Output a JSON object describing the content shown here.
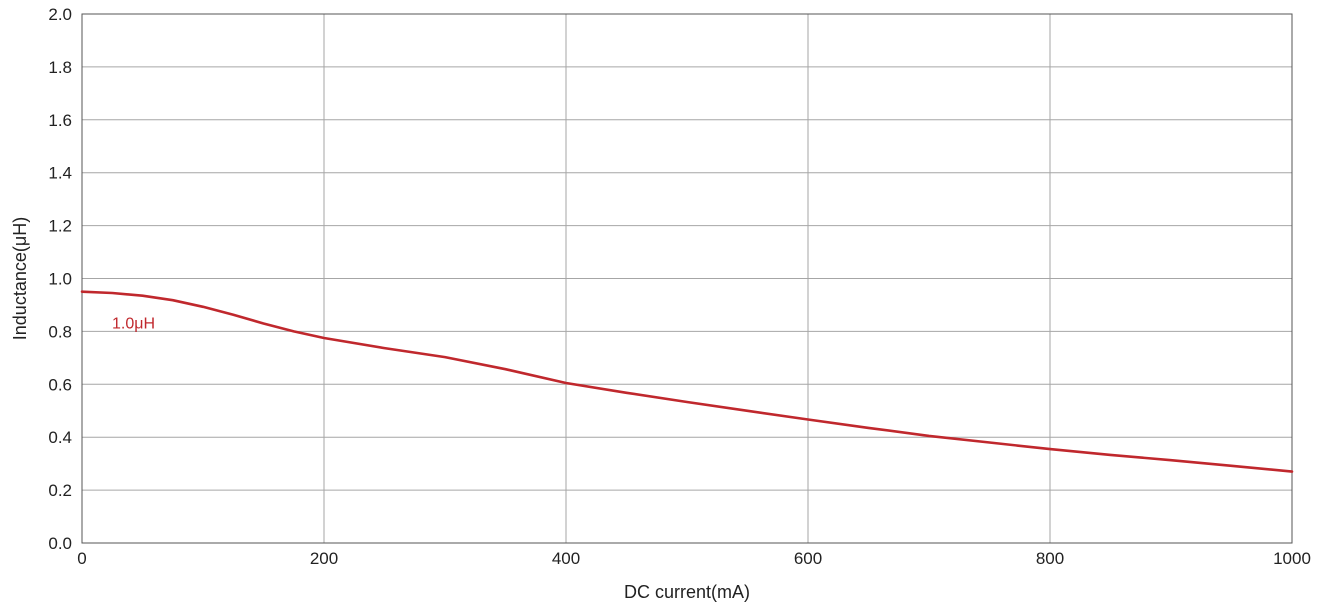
{
  "chart_data": {
    "type": "line",
    "xlabel": "DC current(mA)",
    "ylabel": "Inductance(μH)",
    "xlim": [
      0,
      1000
    ],
    "ylim": [
      0,
      2.0
    ],
    "x_ticks": [
      "0",
      "200",
      "400",
      "600",
      "800",
      "1000"
    ],
    "y_ticks": [
      "0.0",
      "0.2",
      "0.4",
      "0.6",
      "0.8",
      "1.0",
      "1.2",
      "1.4",
      "1.6",
      "1.8",
      "2.0"
    ],
    "grid": true,
    "series": [
      {
        "name": "1.0μH",
        "color": "#c0282d",
        "x": [
          0,
          25,
          50,
          75,
          100,
          125,
          150,
          175,
          200,
          250,
          300,
          350,
          400,
          450,
          500,
          550,
          600,
          650,
          700,
          750,
          800,
          850,
          900,
          950,
          1000
        ],
        "y": [
          0.95,
          0.945,
          0.935,
          0.918,
          0.893,
          0.863,
          0.83,
          0.8,
          0.775,
          0.737,
          0.703,
          0.657,
          0.605,
          0.568,
          0.533,
          0.5,
          0.467,
          0.435,
          0.405,
          0.38,
          0.355,
          0.333,
          0.313,
          0.292,
          0.27
        ]
      }
    ]
  }
}
